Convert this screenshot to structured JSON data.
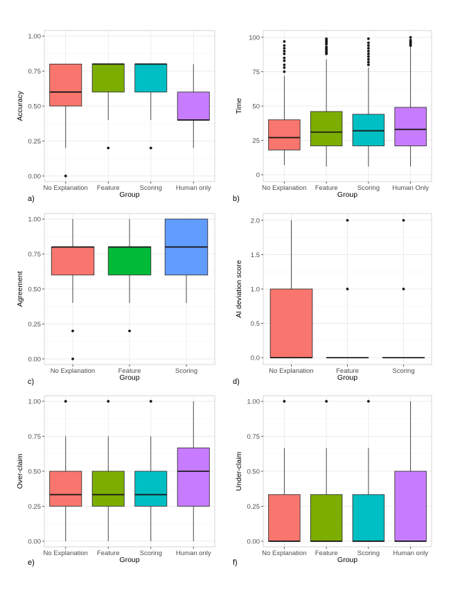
{
  "chart_data": [
    {
      "type": "boxplot",
      "panel_label": "a)",
      "title": "",
      "xlabel": "Group",
      "ylabel": "Accuracy",
      "ylim": [
        -0.04,
        1.04
      ],
      "yticks": [
        0,
        0.25,
        0.5,
        0.75,
        1.0
      ],
      "ytick_labels": [
        "0.00",
        "0.25",
        "0.50",
        "0.75",
        "1.00"
      ],
      "categories": [
        "No Explanation",
        "Feature",
        "Scoring",
        "Human only"
      ],
      "colors": [
        "#F8766D",
        "#7CAE00",
        "#00BFC4",
        "#C77CFF"
      ],
      "boxes": [
        {
          "low": 0.2,
          "q1": 0.5,
          "median": 0.6,
          "q3": 0.8,
          "high": 0.8,
          "outliers": [
            0.0
          ]
        },
        {
          "low": 0.4,
          "q1": 0.6,
          "median": 0.8,
          "q3": 0.8,
          "high": 0.8,
          "outliers": [
            0.2
          ]
        },
        {
          "low": 0.4,
          "q1": 0.6,
          "median": 0.8,
          "q3": 0.8,
          "high": 0.8,
          "outliers": [
            0.2
          ]
        },
        {
          "low": 0.2,
          "q1": 0.4,
          "median": 0.4,
          "q3": 0.6,
          "high": 0.8,
          "outliers": []
        }
      ]
    },
    {
      "type": "boxplot",
      "panel_label": "b)",
      "title": "",
      "xlabel": "Group",
      "ylabel": "Time",
      "ylim": [
        -5,
        105
      ],
      "yticks": [
        0,
        25,
        50,
        75,
        100
      ],
      "ytick_labels": [
        "0",
        "25",
        "50",
        "75",
        "100"
      ],
      "categories": [
        "No Explanation",
        "Feature",
        "Scoring",
        "Human Only"
      ],
      "colors": [
        "#F8766D",
        "#7CAE00",
        "#00BFC4",
        "#C77CFF"
      ],
      "boxes": [
        {
          "low": 7,
          "q1": 18,
          "median": 27,
          "q3": 40,
          "high": 72,
          "outliers": [
            75,
            78,
            80,
            83,
            85,
            88,
            90,
            92,
            94,
            97
          ]
        },
        {
          "low": 6,
          "q1": 21,
          "median": 31,
          "q3": 46,
          "high": 84,
          "outliers": [
            88,
            89,
            90,
            91,
            92,
            93,
            95,
            96,
            97,
            98,
            99
          ]
        },
        {
          "low": 6,
          "q1": 21,
          "median": 32,
          "q3": 44,
          "high": 78,
          "outliers": [
            80,
            82,
            84,
            86,
            88,
            90,
            92,
            94,
            96,
            99
          ]
        },
        {
          "low": 6,
          "q1": 21,
          "median": 33,
          "q3": 49,
          "high": 93,
          "outliers": [
            94,
            95,
            96,
            97,
            98,
            100
          ]
        }
      ]
    },
    {
      "type": "boxplot",
      "panel_label": "c)",
      "title": "",
      "xlabel": "Group",
      "ylabel": "Agreement",
      "ylim": [
        -0.04,
        1.04
      ],
      "yticks": [
        0,
        0.25,
        0.5,
        0.75,
        1.0
      ],
      "ytick_labels": [
        "0.00",
        "0.25",
        "0.50",
        "0.75",
        "1.00"
      ],
      "categories": [
        "No Explanation",
        "Feature",
        "Scoring"
      ],
      "colors": [
        "#F8766D",
        "#00BA38",
        "#619CFF"
      ],
      "boxes": [
        {
          "low": 0.4,
          "q1": 0.6,
          "median": 0.8,
          "q3": 0.8,
          "high": 1.0,
          "outliers": [
            0.2,
            0.0
          ]
        },
        {
          "low": 0.4,
          "q1": 0.6,
          "median": 0.8,
          "q3": 0.8,
          "high": 1.0,
          "outliers": [
            0.2
          ]
        },
        {
          "low": 0.4,
          "q1": 0.6,
          "median": 0.8,
          "q3": 1.0,
          "high": 1.0,
          "outliers": []
        }
      ]
    },
    {
      "type": "boxplot",
      "panel_label": "d)",
      "title": "",
      "xlabel": "Group",
      "ylabel": "AI deviation score",
      "ylim": [
        -0.1,
        2.1
      ],
      "yticks": [
        0,
        0.5,
        1.0,
        1.5,
        2.0
      ],
      "ytick_labels": [
        "0.0",
        "0.5",
        "1.0",
        "1.5",
        "2.0"
      ],
      "categories": [
        "No Explanation",
        "Feature",
        "Scoring"
      ],
      "colors": [
        "#F8766D",
        "#00BA38",
        "#619CFF"
      ],
      "boxes": [
        {
          "low": 0,
          "q1": 0,
          "median": 0,
          "q3": 1.0,
          "high": 2.0,
          "outliers": []
        },
        {
          "low": 0,
          "q1": 0,
          "median": 0,
          "q3": 0,
          "high": 0,
          "outliers": [
            1.0,
            2.0
          ]
        },
        {
          "low": 0,
          "q1": 0,
          "median": 0,
          "q3": 0,
          "high": 0,
          "outliers": [
            1.0,
            2.0
          ]
        }
      ]
    },
    {
      "type": "boxplot",
      "panel_label": "e)",
      "title": "",
      "xlabel": "Group",
      "ylabel": "Over-claim",
      "ylim": [
        -0.04,
        1.04
      ],
      "yticks": [
        0,
        0.25,
        0.5,
        0.75,
        1.0
      ],
      "ytick_labels": [
        "0.00",
        "0.25",
        "0.50",
        "0.75",
        "1.00"
      ],
      "categories": [
        "No Explanation",
        "Feature",
        "Scoring",
        "Human only"
      ],
      "colors": [
        "#F8766D",
        "#7CAE00",
        "#00BFC4",
        "#C77CFF"
      ],
      "boxes": [
        {
          "low": 0,
          "q1": 0.25,
          "median": 0.333,
          "q3": 0.5,
          "high": 0.75,
          "outliers": [
            1.0
          ]
        },
        {
          "low": 0,
          "q1": 0.25,
          "median": 0.333,
          "q3": 0.5,
          "high": 0.75,
          "outliers": [
            1.0
          ]
        },
        {
          "low": 0,
          "q1": 0.25,
          "median": 0.333,
          "q3": 0.5,
          "high": 0.75,
          "outliers": [
            1.0
          ]
        },
        {
          "low": 0,
          "q1": 0.25,
          "median": 0.5,
          "q3": 0.667,
          "high": 1.0,
          "outliers": []
        }
      ]
    },
    {
      "type": "boxplot",
      "panel_label": "f)",
      "title": "",
      "xlabel": "Group",
      "ylabel": "Under-claim",
      "ylim": [
        -0.04,
        1.04
      ],
      "yticks": [
        0,
        0.25,
        0.5,
        0.75,
        1.0
      ],
      "ytick_labels": [
        "0.00",
        "0.25",
        "0.50",
        "0.75",
        "1.00"
      ],
      "categories": [
        "No Explanation",
        "Feature",
        "Scoring",
        "Human only"
      ],
      "colors": [
        "#F8766D",
        "#7CAE00",
        "#00BFC4",
        "#C77CFF"
      ],
      "boxes": [
        {
          "low": 0,
          "q1": 0,
          "median": 0,
          "q3": 0.333,
          "high": 0.667,
          "outliers": [
            1.0
          ]
        },
        {
          "low": 0,
          "q1": 0,
          "median": 0,
          "q3": 0.333,
          "high": 0.667,
          "outliers": [
            1.0
          ]
        },
        {
          "low": 0,
          "q1": 0,
          "median": 0,
          "q3": 0.333,
          "high": 0.667,
          "outliers": [
            1.0
          ]
        },
        {
          "low": 0,
          "q1": 0,
          "median": 0,
          "q3": 0.5,
          "high": 1.0,
          "outliers": []
        }
      ]
    }
  ]
}
